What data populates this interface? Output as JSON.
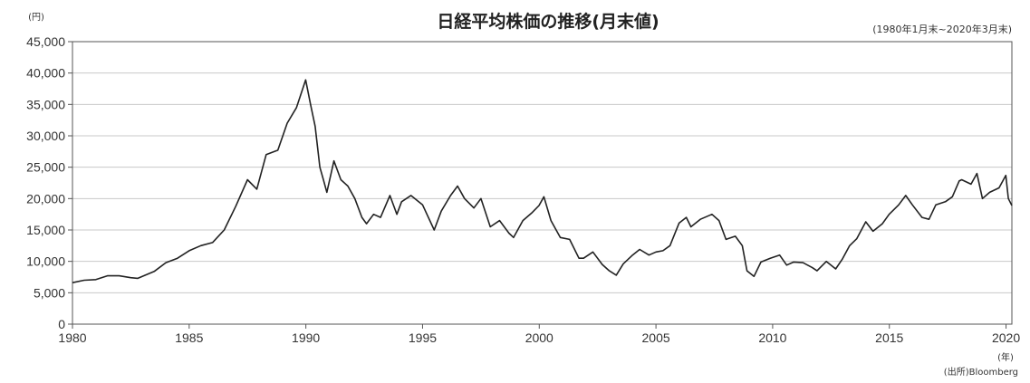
{
  "chart_data": {
    "type": "line",
    "title": "日経平均株価の推移(月末値)",
    "period_note": "(1980年1月末~2020年3月末)",
    "y_unit": "(円)",
    "x_unit": "(年)",
    "source": "(出所)Bloomberg",
    "xlim": [
      1980,
      2020.25
    ],
    "ylim": [
      0,
      45000
    ],
    "x_ticks": [
      1980,
      1985,
      1990,
      1995,
      2000,
      2005,
      2010,
      2015,
      2020
    ],
    "x_tick_labels": [
      "1980",
      "1985",
      "1990",
      "1995",
      "2000",
      "2005",
      "2010",
      "2015",
      "2020"
    ],
    "y_ticks": [
      0,
      5000,
      10000,
      15000,
      20000,
      25000,
      30000,
      35000,
      40000,
      45000
    ],
    "y_tick_labels": [
      "0",
      "5,000",
      "10,000",
      "15,000",
      "20,000",
      "25,000",
      "30,000",
      "35,000",
      "40,000",
      "45,000"
    ],
    "grid": "horizontal",
    "line_color": "#222222",
    "series": [
      {
        "x": [
          1980.0,
          1980.5,
          1981.0,
          1981.5,
          1982.0,
          1982.5,
          1982.8,
          1983.5,
          1984.0,
          1984.5,
          1985.0,
          1985.5,
          1986.0,
          1986.5,
          1987.0,
          1987.5,
          1987.9,
          1988.3,
          1988.8,
          1989.2,
          1989.6,
          1989.99,
          1990.2,
          1990.4,
          1990.6,
          1990.75,
          1990.9,
          1991.2,
          1991.5,
          1991.8,
          1992.1,
          1992.4,
          1992.6,
          1992.9,
          1993.2,
          1993.6,
          1993.9,
          1994.1,
          1994.5,
          1995.0,
          1995.5,
          1995.8,
          1996.2,
          1996.5,
          1996.8,
          1997.2,
          1997.5,
          1997.9,
          1998.3,
          1998.7,
          1998.9,
          1999.3,
          1999.7,
          1999.99,
          2000.2,
          2000.5,
          2000.9,
          2001.3,
          2001.7,
          2001.9,
          2002.3,
          2002.7,
          2003.0,
          2003.3,
          2003.6,
          2004.0,
          2004.3,
          2004.7,
          2005.0,
          2005.3,
          2005.6,
          2005.99,
          2006.3,
          2006.5,
          2006.9,
          2007.4,
          2007.7,
          2008.0,
          2008.4,
          2008.7,
          2008.9,
          2009.2,
          2009.5,
          2009.9,
          2010.3,
          2010.6,
          2010.9,
          2011.3,
          2011.7,
          2011.9,
          2012.3,
          2012.7,
          2012.99,
          2013.3,
          2013.6,
          2013.99,
          2014.3,
          2014.7,
          2014.99,
          2015.4,
          2015.7,
          2015.99,
          2016.4,
          2016.7,
          2016.99,
          2017.4,
          2017.7,
          2017.99,
          2018.1,
          2018.5,
          2018.75,
          2018.99,
          2019.3,
          2019.7,
          2019.99,
          2020.1,
          2020.25
        ],
        "values": [
          6600,
          7000,
          7100,
          7700,
          7700,
          7400,
          7300,
          8400,
          9800,
          10500,
          11700,
          12500,
          13000,
          15000,
          18800,
          23000,
          21500,
          27000,
          27700,
          32000,
          34500,
          38916,
          35000,
          31500,
          25000,
          23000,
          21000,
          26000,
          23000,
          22000,
          20000,
          17000,
          16000,
          17500,
          17000,
          20500,
          17500,
          19500,
          20500,
          19000,
          15000,
          18000,
          20500,
          22000,
          20000,
          18500,
          20000,
          15500,
          16500,
          14500,
          13800,
          16500,
          17800,
          18900,
          20300,
          16500,
          13800,
          13500,
          10500,
          10500,
          11500,
          9500,
          8500,
          7800,
          9600,
          11000,
          11900,
          11000,
          11500,
          11700,
          12500,
          16100,
          17000,
          15500,
          16700,
          17500,
          16500,
          13500,
          14000,
          12500,
          8500,
          7600,
          9900,
          10500,
          11000,
          9400,
          9900,
          9800,
          9000,
          8500,
          10000,
          8800,
          10400,
          12500,
          13600,
          16300,
          14800,
          16000,
          17500,
          19000,
          20500,
          19000,
          17000,
          16700,
          19000,
          19500,
          20300,
          22800,
          23000,
          22300,
          24000,
          20000,
          21000,
          21700,
          23700,
          20000,
          18900
        ]
      }
    ]
  }
}
